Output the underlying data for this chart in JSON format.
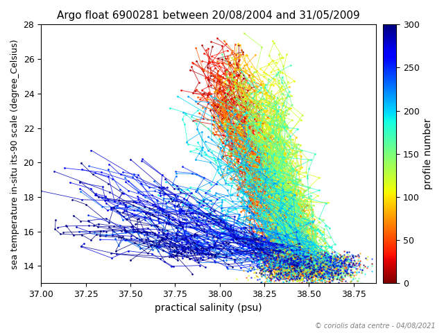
{
  "title": "Argo float 6900281 between 20/08/2004 and 31/05/2009",
  "xlabel": "practical salinity (psu)",
  "ylabel": "sea temperature in-situ its-90 scale (degree_Celsius)",
  "cbar_label": "profile number",
  "copyright": "© coriolis data centre - 04/08/2021",
  "xlim": [
    37.0,
    38.875
  ],
  "ylim": [
    13.0,
    28.0
  ],
  "xticks": [
    37.0,
    37.25,
    37.5,
    37.75,
    38.0,
    38.25,
    38.5,
    38.75
  ],
  "yticks": [
    14,
    16,
    18,
    20,
    22,
    24,
    26,
    28
  ],
  "cbar_ticks": [
    0,
    50,
    100,
    150,
    200,
    250,
    300
  ],
  "n_profiles": 310,
  "colormap": "jet_r",
  "vmin": 0,
  "vmax": 300,
  "seed": 42,
  "figsize": [
    6.4,
    4.8
  ],
  "dpi": 100
}
